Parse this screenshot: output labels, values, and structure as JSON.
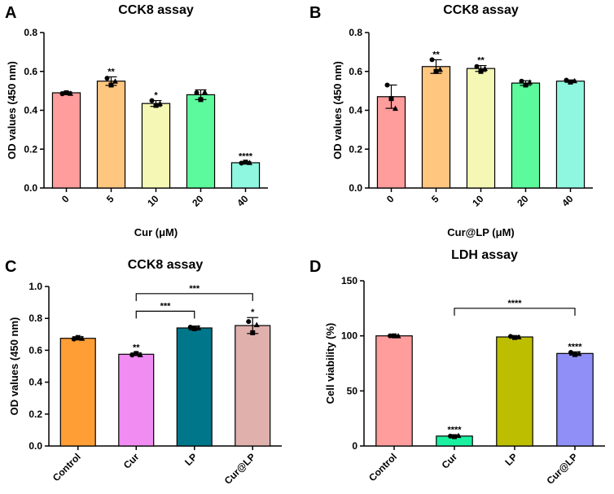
{
  "chart_data": [
    {
      "panel": "A",
      "type": "bar",
      "title": "CCK8 assay",
      "xlabel": "Cur (μM)",
      "ylabel": "OD values (450 nm)",
      "ylim": [
        0,
        0.8
      ],
      "yticks": [
        "0.0",
        "0.2",
        "0.4",
        "0.6",
        "0.8"
      ],
      "categories": [
        "0",
        "5",
        "10",
        "20",
        "40"
      ],
      "values": [
        0.49,
        0.55,
        0.435,
        0.48,
        0.13
      ],
      "errors": [
        0.005,
        0.022,
        0.015,
        0.025,
        0.006
      ],
      "points": [
        [
          0.485,
          0.49,
          0.487
        ],
        [
          0.565,
          0.53,
          0.55
        ],
        [
          0.45,
          0.425,
          0.435
        ],
        [
          0.49,
          0.455,
          0.495
        ],
        [
          0.128,
          0.133,
          0.131
        ]
      ],
      "significance": [
        "",
        "**",
        "*",
        "",
        "****"
      ],
      "brackets": [],
      "colors": [
        "#ff9c9c",
        "#ffc680",
        "#f4f8b4",
        "#5cfa9c",
        "#8ff7df"
      ],
      "x_tick_rotation": 45
    },
    {
      "panel": "B",
      "type": "bar",
      "title": "CCK8 assay",
      "xlabel": "Cur@LP (μM)",
      "ylabel": "OD values (450 nm)",
      "ylim": [
        0,
        0.8
      ],
      "yticks": [
        "0.0",
        "0.2",
        "0.4",
        "0.6",
        "0.8"
      ],
      "categories": [
        "0",
        "5",
        "10",
        "20",
        "40"
      ],
      "values": [
        0.47,
        0.625,
        0.615,
        0.54,
        0.55
      ],
      "errors": [
        0.06,
        0.035,
        0.015,
        0.012,
        0.006
      ],
      "points": [
        [
          0.53,
          0.46,
          0.41
        ],
        [
          0.66,
          0.6,
          0.61
        ],
        [
          0.625,
          0.6,
          0.615
        ],
        [
          0.55,
          0.53,
          0.545
        ],
        [
          0.555,
          0.545,
          0.552
        ]
      ],
      "significance": [
        "",
        "**",
        "**",
        "",
        ""
      ],
      "brackets": [],
      "colors": [
        "#ff9c9c",
        "#ffc680",
        "#f4f8b4",
        "#5cfa9c",
        "#8ff7df"
      ],
      "x_tick_rotation": 45
    },
    {
      "panel": "C",
      "type": "bar",
      "title": "CCK8 assay",
      "xlabel": "",
      "ylabel": "OD values (450 nm)",
      "ylim": [
        0,
        1.0
      ],
      "yticks": [
        "0.0",
        "0.2",
        "0.4",
        "0.6",
        "0.8",
        "1.0"
      ],
      "categories": [
        "Control",
        "Cur",
        "LP",
        "Cur@LP"
      ],
      "values": [
        0.675,
        0.575,
        0.74,
        0.755
      ],
      "errors": [
        0.01,
        0.008,
        0.012,
        0.05
      ],
      "points": [
        [
          0.67,
          0.68,
          0.675
        ],
        [
          0.57,
          0.58,
          0.572
        ],
        [
          0.745,
          0.735,
          0.742
        ],
        [
          0.78,
          0.71,
          0.76
        ]
      ],
      "significance": [
        "",
        "**",
        "",
        "*"
      ],
      "brackets": [
        {
          "from": 1,
          "to": 2,
          "label": "***",
          "y": 0.845
        },
        {
          "from": 1,
          "to": 3,
          "label": "***",
          "y": 0.955
        }
      ],
      "colors": [
        "#ff9e35",
        "#f08cf2",
        "#00768a",
        "#e0b0ac"
      ],
      "x_tick_rotation": 45
    },
    {
      "panel": "D",
      "type": "bar",
      "title": "LDH assay",
      "xlabel": "",
      "ylabel": "Cell viability (%)",
      "ylim": [
        0,
        150
      ],
      "yticks": [
        "0",
        "50",
        "100",
        "150"
      ],
      "categories": [
        "Control",
        "Cur",
        "LP",
        "Cur@LP"
      ],
      "values": [
        100,
        9,
        99,
        84
      ],
      "errors": [
        0.5,
        1,
        1,
        1.5
      ],
      "points": [
        [
          100,
          100,
          100
        ],
        [
          9,
          8.5,
          9.5
        ],
        [
          99.5,
          98.5,
          99
        ],
        [
          85,
          83,
          84
        ]
      ],
      "significance": [
        "",
        "****",
        "",
        "****"
      ],
      "brackets": [
        {
          "from": 1,
          "to": 3,
          "label": "****",
          "y": 125
        }
      ],
      "colors": [
        "#ff9c9c",
        "#1bf0a0",
        "#bebe00",
        "#8f8ff7"
      ],
      "x_tick_rotation": 45
    }
  ]
}
